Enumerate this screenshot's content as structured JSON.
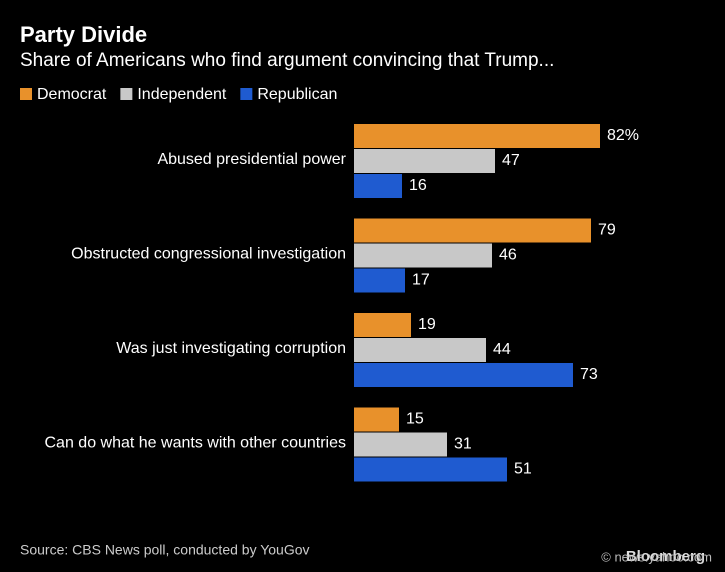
{
  "chart_data": {
    "type": "hbar",
    "title": "Party Divide",
    "subtitle": "Share of Americans who find argument convincing that Trump...",
    "categories": [
      "Abused presidential power",
      "Obstructed congressional investigation",
      "Was just investigating corruption",
      "Can do what he wants with other countries"
    ],
    "series": [
      {
        "name": "Democrat",
        "color": "#e8912b",
        "values": [
          82,
          79,
          19,
          15
        ],
        "value_labels": [
          "82%",
          "79",
          "19",
          "15"
        ]
      },
      {
        "name": "Independent",
        "color": "#c8c8c8",
        "values": [
          47,
          46,
          44,
          31
        ]
      },
      {
        "name": "Republican",
        "color": "#1f5bd0",
        "values": [
          16,
          17,
          73,
          51
        ]
      }
    ],
    "source": "Source: CBS News poll, conducted by YouGov",
    "brand": "Bloomberg",
    "watermark": "© news.yahoo.com"
  }
}
